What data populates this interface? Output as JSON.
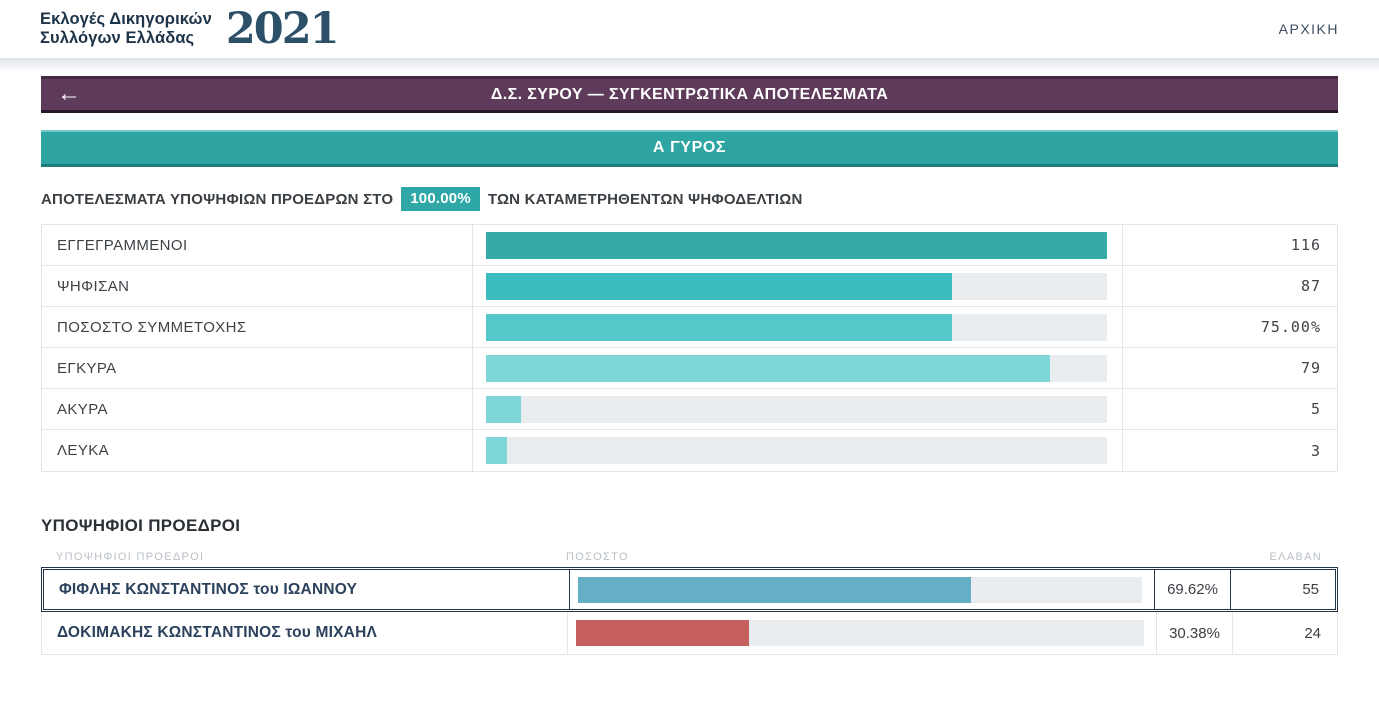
{
  "header": {
    "logo_line1": "Εκλογές Δικηγορικών",
    "logo_line2": "Συλλόγων Ελλάδας",
    "logo_year": "2021",
    "nav_home": "ΑΡΧΙΚΗ"
  },
  "title_bar": {
    "back_icon": "←",
    "title": "Δ.Σ. ΣΥΡΟΥ —  ΣΥΓΚΕΝΤΡΩΤΙΚΑ ΑΠΟΤΕΛΕΣΜΑΤΑ"
  },
  "round_bar": {
    "label": "Α ΓΥΡΟΣ"
  },
  "results_line": {
    "prefix": "ΑΠΟΤΕΛΕΣΜΑΤΑ ΥΠΟΨΗΦΙΩΝ ΠΡΟΕΔΡΩΝ ΣΤΟ",
    "badge": "100.00%",
    "suffix": "ΤΩΝ ΚΑΤΑΜΕΤΡΗΘΕΝΤΩΝ ΨΗΦΟΔΕΛΤΙΩΝ"
  },
  "stats_table": {
    "rows": [
      {
        "label": "ΕΓΓΕΓΡΑΜΜΕΝΟΙ",
        "value": "116",
        "bar_pct": 100,
        "bar_color": "#36a9a9"
      },
      {
        "label": "ΨΗΦΙΣΑΝ",
        "value": "87",
        "bar_pct": 75,
        "bar_color": "#3cbcbf"
      },
      {
        "label": "ΠΟΣΟΣΤΟ ΣΥΜΜΕΤΟΧΗΣ",
        "value": "75.00%",
        "bar_pct": 75,
        "bar_color": "#55c8ca"
      },
      {
        "label": "ΕΓΚΥΡΑ",
        "value": "79",
        "bar_pct": 90.8,
        "bar_color": "#7ed6d8"
      },
      {
        "label": "ΑΚΥΡΑ",
        "value": "5",
        "bar_pct": 5.7,
        "bar_color": "#7ed6d8"
      },
      {
        "label": "ΛΕΥΚΑ",
        "value": "3",
        "bar_pct": 3.4,
        "bar_color": "#7ed6d8"
      }
    ]
  },
  "candidates": {
    "heading": "ΥΠΟΨΗΦΙΟΙ ΠΡΟΕΔΡΟΙ",
    "col_headers": {
      "name": "ΥΠΟΨΗΦΙΟΙ ΠΡΟΕΔΡΟΙ",
      "percent": "ΠΟΣΟΣΤΟ",
      "received": "ΕΛΑΒΑΝ"
    },
    "rows": [
      {
        "name": "ΦΙΦΛΗΣ ΚΩΝΣΤΑΝΤΙΝΟΣ του ΙΩΑΝΝΟΥ",
        "percent": "69.62%",
        "received": "55",
        "bar_pct": 69.62,
        "bar_color": "#64aec6",
        "winner": true
      },
      {
        "name": "ΔΟΚΙΜΑΚΗΣ ΚΩΝΣΤΑΝΤΙΝΟΣ του ΜΙΧΑΗΛ",
        "percent": "30.38%",
        "received": "24",
        "bar_pct": 30.38,
        "bar_color": "#c6605f",
        "winner": false
      }
    ]
  },
  "colors": {
    "accent_teal": "#2ea5a3",
    "title_purple": "#5e3b5a",
    "winner_blue": "#64aec6",
    "runnerup_red": "#c6605f",
    "bar_track": "#e9edef",
    "logo_navy": "#1d3348"
  }
}
